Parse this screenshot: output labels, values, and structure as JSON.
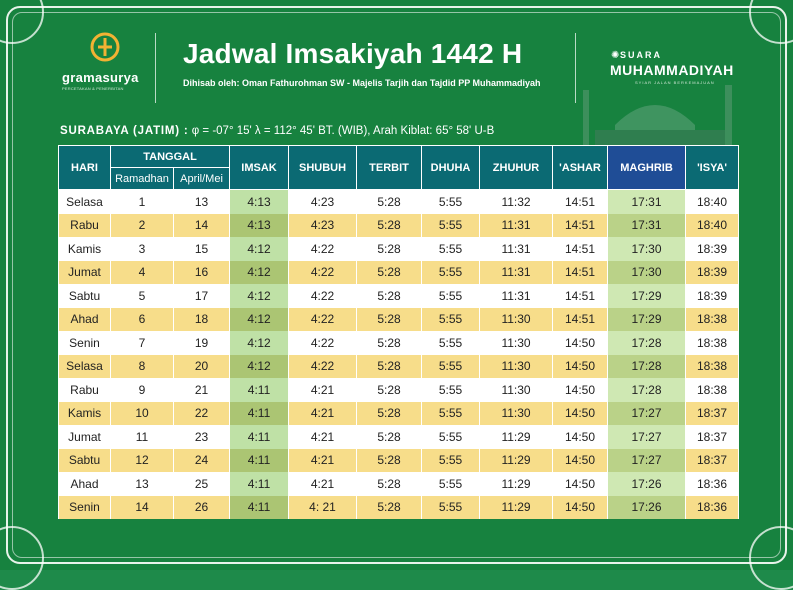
{
  "header": {
    "brand": "gramasurya",
    "brand_tagline": "PERCETAKAN & PENERBITAN",
    "title": "Jadwal Imsakiyah 1442 H",
    "subtitle": "Dihisab oleh: Oman Fathurohman SW - Majelis Tarjih dan Tajdid PP Muhammadiyah",
    "partner_top": "SUARA",
    "partner_name": "MUHAMMADIYAH",
    "partner_tagline": "SYIAR JALAN BERKEMAJUAN"
  },
  "location": {
    "city": "SURABAYA (JATIM) :",
    "coords": "φ = -07° 15'  λ = 112° 45'  BT. (WIB), Arah Kiblat: 65° 58'  U-B"
  },
  "table": {
    "headers": {
      "hari": "HARI",
      "tanggal": "TANGGAL",
      "ramadhan": "Ramadhan",
      "april_mei": "April/Mei",
      "imsak": "IMSAK",
      "shubuh": "SHUBUH",
      "terbit": "TERBIT",
      "dhuha": "DHUHA",
      "zhuhur": "ZHUHUR",
      "ashar": "'ASHAR",
      "maghrib": "MAGHRIB",
      "isya": "'ISYA'"
    },
    "rows": [
      [
        "Selasa",
        "1",
        "13",
        "4:13",
        "4:23",
        "5:28",
        "5:55",
        "11:32",
        "14:51",
        "17:31",
        "18:40"
      ],
      [
        "Rabu",
        "2",
        "14",
        "4:13",
        "4:23",
        "5:28",
        "5:55",
        "11:31",
        "14:51",
        "17:31",
        "18:40"
      ],
      [
        "Kamis",
        "3",
        "15",
        "4:12",
        "4:22",
        "5:28",
        "5:55",
        "11:31",
        "14:51",
        "17:30",
        "18:39"
      ],
      [
        "Jumat",
        "4",
        "16",
        "4:12",
        "4:22",
        "5:28",
        "5:55",
        "11:31",
        "14:51",
        "17:30",
        "18:39"
      ],
      [
        "Sabtu",
        "5",
        "17",
        "4:12",
        "4:22",
        "5:28",
        "5:55",
        "11:31",
        "14:51",
        "17:29",
        "18:39"
      ],
      [
        "Ahad",
        "6",
        "18",
        "4:12",
        "4:22",
        "5:28",
        "5:55",
        "11:30",
        "14:51",
        "17:29",
        "18:38"
      ],
      [
        "Senin",
        "7",
        "19",
        "4:12",
        "4:22",
        "5:28",
        "5:55",
        "11:30",
        "14:50",
        "17:28",
        "18:38"
      ],
      [
        "Selasa",
        "8",
        "20",
        "4:12",
        "4:22",
        "5:28",
        "5:55",
        "11:30",
        "14:50",
        "17:28",
        "18:38"
      ],
      [
        "Rabu",
        "9",
        "21",
        "4:11",
        "4:21",
        "5:28",
        "5:55",
        "11:30",
        "14:50",
        "17:28",
        "18:38"
      ],
      [
        "Kamis",
        "10",
        "22",
        "4:11",
        "4:21",
        "5:28",
        "5:55",
        "11:30",
        "14:50",
        "17:27",
        "18:37"
      ],
      [
        "Jumat",
        "11",
        "23",
        "4:11",
        "4:21",
        "5:28",
        "5:55",
        "11:29",
        "14:50",
        "17:27",
        "18:37"
      ],
      [
        "Sabtu",
        "12",
        "24",
        "4:11",
        "4:21",
        "5:28",
        "5:55",
        "11:29",
        "14:50",
        "17:27",
        "18:37"
      ],
      [
        "Ahad",
        "13",
        "25",
        "4:11",
        "4:21",
        "5:28",
        "5:55",
        "11:29",
        "14:50",
        "17:26",
        "18:36"
      ],
      [
        "Senin",
        "14",
        "26",
        "4:11",
        "4: 21",
        "5:28",
        "5:55",
        "11:29",
        "14:50",
        "17:26",
        "18:36"
      ]
    ]
  },
  "colors": {
    "background": "#17823f",
    "header_cell": "#0b6a73",
    "maghrib_header": "#1f4d96",
    "row_alt": "#f7dd8a",
    "imsak_column": "#bfe1a6"
  }
}
